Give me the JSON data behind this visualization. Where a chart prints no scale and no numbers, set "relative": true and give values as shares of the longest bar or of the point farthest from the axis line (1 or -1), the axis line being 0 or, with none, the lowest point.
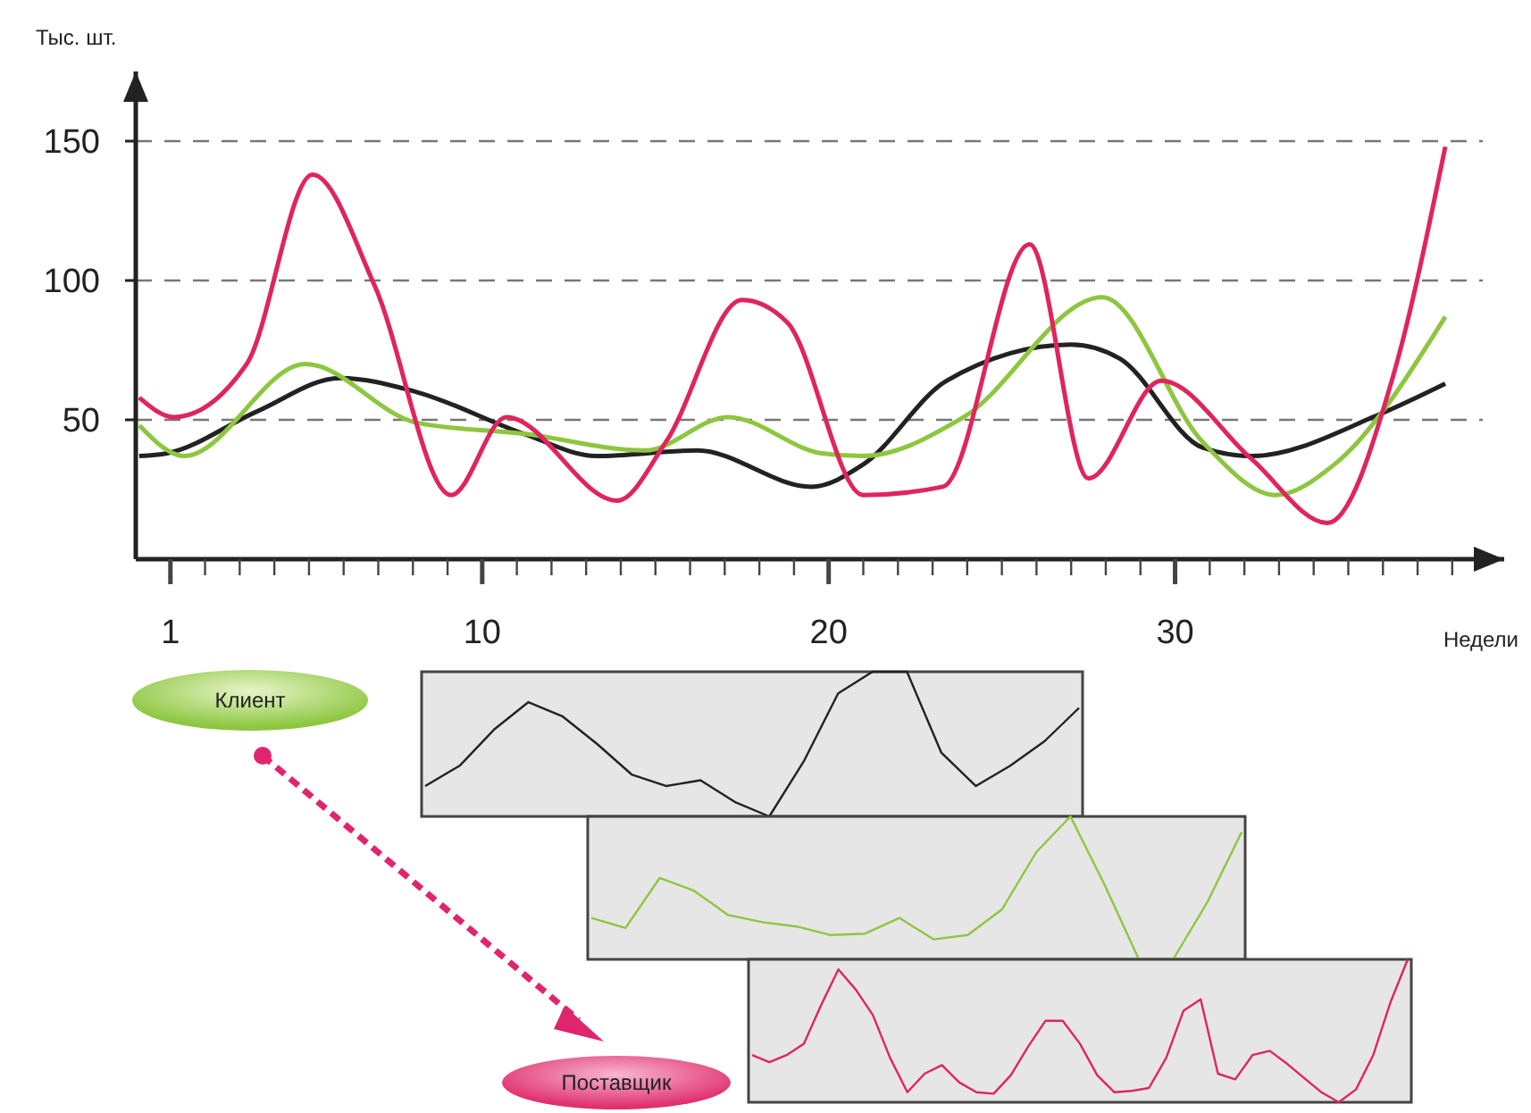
{
  "chart_data": [
    {
      "type": "line",
      "xlabel": "Недели",
      "ylabel": "Тыс. шт.",
      "xlim": [
        0,
        39.5
      ],
      "ylim": [
        0,
        175
      ],
      "xticks": [
        {
          "value": 1,
          "label": "1"
        },
        {
          "value": 2,
          "label": null
        },
        {
          "value": 3,
          "label": null
        },
        {
          "value": 4,
          "label": null
        },
        {
          "value": 5,
          "label": null
        },
        {
          "value": 6,
          "label": null
        },
        {
          "value": 7,
          "label": null
        },
        {
          "value": 8,
          "label": null
        },
        {
          "value": 9,
          "label": null
        },
        10,
        {
          "value": 11,
          "label": null
        },
        {
          "value": 12,
          "label": null
        },
        {
          "value": 13,
          "label": null
        },
        {
          "value": 14,
          "label": null
        },
        {
          "value": 15,
          "label": null
        },
        {
          "value": 16,
          "label": null
        },
        {
          "value": 17,
          "label": null
        },
        {
          "value": 18,
          "label": null
        },
        {
          "value": 19,
          "label": null
        },
        20,
        {
          "value": 21,
          "label": null
        },
        {
          "value": 22,
          "label": null
        },
        {
          "value": 23,
          "label": null
        },
        {
          "value": 24,
          "label": null
        },
        {
          "value": 25,
          "label": null
        },
        {
          "value": 26,
          "label": null
        },
        {
          "value": 27,
          "label": null
        },
        {
          "value": 28,
          "label": null
        },
        {
          "value": 29,
          "label": null
        },
        30,
        {
          "value": 31,
          "label": null
        },
        {
          "value": 32,
          "label": null
        },
        {
          "value": 33,
          "label": null
        },
        {
          "value": 34,
          "label": null
        },
        {
          "value": 35,
          "label": null
        },
        {
          "value": 36,
          "label": null
        },
        {
          "value": 37,
          "label": null
        },
        {
          "value": 38,
          "label": null
        }
      ],
      "yticks": [
        50,
        100,
        150
      ],
      "grid": "y",
      "line_style": "solid",
      "series": [
        {
          "color": "#222222",
          "x": [
            0.1,
            0.9,
            3.5,
            5.9,
            8.1,
            11.2,
            13.3,
            16.2,
            19.5,
            21,
            23.4,
            27,
            28.4,
            30.8,
            32.2,
            35.9,
            37.8
          ],
          "values": [
            37,
            38,
            53,
            65,
            60,
            45,
            37,
            39,
            26,
            34,
            64,
            77,
            72,
            40,
            37,
            52,
            63
          ]
        },
        {
          "color": "#8dc63f",
          "x": [
            0.1,
            1.4,
            4.9,
            8.1,
            11.2,
            14.7,
            17.1,
            19.8,
            21,
            23.9,
            27.9,
            30.8,
            32.9,
            34.6,
            37.8
          ],
          "values": [
            48,
            37,
            70,
            49,
            45,
            39,
            51,
            38,
            37,
            51,
            94,
            42,
            23,
            34,
            87
          ]
        },
        {
          "color": "#e0245e",
          "x": [
            0.1,
            1.1,
            3.2,
            5.1,
            6.9,
            9.1,
            10.7,
            13.9,
            15.3,
            17.5,
            18.8,
            21,
            23.3,
            25.8,
            27.5,
            29.6,
            32.2,
            34.4,
            36.3,
            37.8
          ],
          "values": [
            58,
            51,
            70,
            138,
            98,
            23,
            51,
            21,
            42,
            93,
            85,
            23,
            26,
            113,
            29,
            64,
            36,
            13,
            66,
            148
          ]
        }
      ],
      "annotations": [
        "Клиент",
        "Поставщик"
      ]
    },
    {
      "type": "line",
      "relative": true,
      "categories": [
        null,
        null,
        null,
        null,
        null,
        null,
        null,
        null,
        null,
        null,
        null,
        null,
        null,
        null,
        null,
        null,
        null,
        null,
        null,
        null
      ],
      "series": [
        {
          "color": "#222222",
          "values": [
            0.21,
            0.35,
            0.6,
            0.79,
            0.69,
            0.5,
            0.29,
            0.21,
            0.25,
            0.1,
            0,
            0.38,
            0.85,
            1,
            1,
            0.44,
            0.21,
            0.35,
            0.52,
            0.75
          ]
        }
      ]
    },
    {
      "type": "line",
      "relative": true,
      "categories": [
        null,
        null,
        null,
        null,
        null,
        null,
        null,
        null,
        null,
        null,
        null,
        null,
        null,
        null,
        null,
        null,
        null,
        null,
        null,
        null
      ],
      "series": [
        {
          "color": "#8dc63f",
          "values": [
            0.29,
            0.22,
            0.57,
            0.48,
            0.31,
            0.26,
            0.23,
            0.17,
            0.18,
            0.29,
            0.14,
            0.17,
            0.35,
            0.75,
            1,
            0.52,
            0,
            0,
            0.4,
            0.89
          ]
        }
      ]
    },
    {
      "type": "line",
      "relative": true,
      "categories": [
        null,
        null,
        null,
        null,
        null,
        null,
        null,
        null,
        null,
        null,
        null,
        null,
        null,
        null,
        null,
        null,
        null,
        null,
        null,
        null,
        null,
        null,
        null,
        null,
        null,
        null,
        null,
        null,
        null,
        null,
        null,
        null,
        null,
        null,
        null,
        null,
        null,
        null,
        null
      ],
      "series": [
        {
          "color": "#e0245e",
          "values": [
            0.33,
            0.28,
            0.33,
            0.41,
            0.68,
            0.93,
            0.79,
            0.61,
            0.31,
            0.07,
            0.2,
            0.26,
            0.14,
            0.07,
            0.06,
            0.19,
            0.39,
            0.57,
            0.57,
            0.41,
            0.19,
            0.07,
            0.08,
            0.1,
            0.31,
            0.64,
            0.72,
            0.2,
            0.16,
            0.33,
            0.36,
            0.27,
            0.17,
            0.07,
            0,
            0.09,
            0.33,
            0.7,
            1
          ]
        }
      ]
    }
  ]
}
